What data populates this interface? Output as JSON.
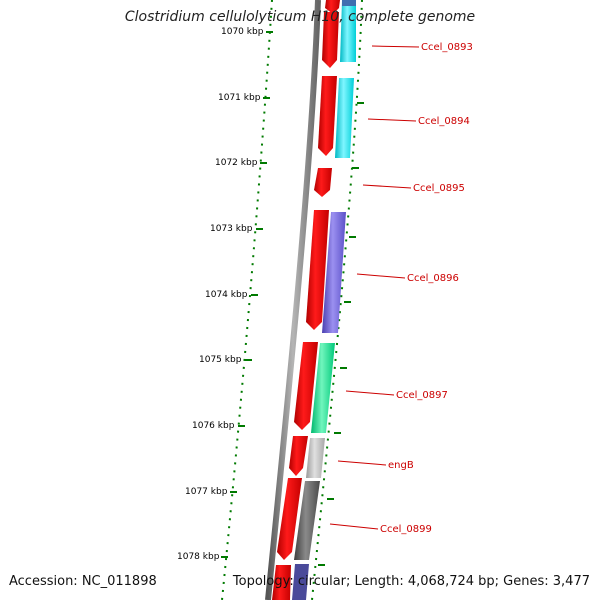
{
  "title": "Clostridium cellulolyticum H10, complete genome",
  "accession": "Accession: NC_011898",
  "summary": "Topology: circular; Length: 4,068,724 bp; Genes: 3,477",
  "colors": {
    "forward_cds": "#e00000",
    "tick": "#007a00",
    "gene_label": "#cc0000",
    "backbone": "#6e6e6e"
  },
  "kbp_ticks": [
    "1070 kbp",
    "1071 kbp",
    "1072 kbp",
    "1073 kbp",
    "1074 kbp",
    "1075 kbp",
    "1076 kbp",
    "1077 kbp",
    "1078 kbp"
  ],
  "genes": [
    {
      "label": "Ccel_0893",
      "color": "#00e5ee"
    },
    {
      "label": "Ccel_0894",
      "color": "#00e5ee"
    },
    {
      "label": "Ccel_0895",
      "color": ""
    },
    {
      "label": "Ccel_0896",
      "color": "#6a5acd"
    },
    {
      "label": "Ccel_0897",
      "color": "#00e08a"
    },
    {
      "label": "engB",
      "color": "#bdbdbd"
    },
    {
      "label": "Ccel_0899",
      "color": "#5a5a5a"
    }
  ]
}
